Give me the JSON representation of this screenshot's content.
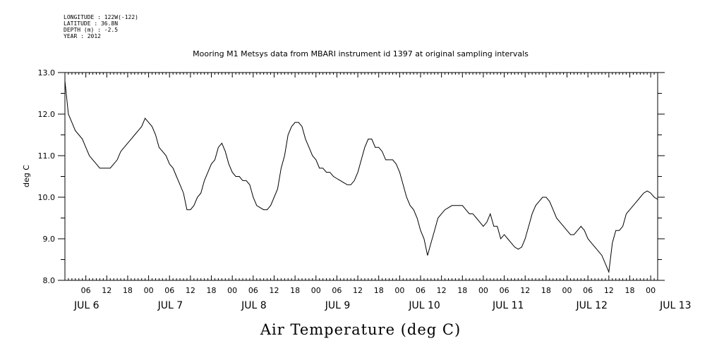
{
  "header": {
    "longitude": "LONGITUDE : 122W(-122)",
    "latitude": "LATITUDE : 36.8N",
    "depth": "DEPTH (m) : -2.5",
    "year": "YEAR : 2012"
  },
  "chart_data": {
    "type": "line",
    "subtitle": "Mooring M1 Metsys data from MBARI instrument id 1397 at original sampling intervals",
    "title": "Air Temperature (deg C)",
    "ylabel": "deg C",
    "xlabel": "",
    "ylim": [
      8.0,
      13.0
    ],
    "y_tick_labels": [
      "8.0",
      "9.0",
      "10.0",
      "11.0",
      "12.0",
      "13.0"
    ],
    "x_start_hour": 0,
    "x_end_hour": 170,
    "x_tick_labels": [
      "06",
      "12",
      "18",
      "00",
      "06",
      "12",
      "18",
      "00",
      "06",
      "12",
      "18",
      "00",
      "06",
      "12",
      "18",
      "00",
      "06",
      "12",
      "18",
      "00",
      "06",
      "12",
      "18",
      "00",
      "06",
      "12",
      "18",
      "00"
    ],
    "day_labels": [
      "JUL  6",
      "JUL  7",
      "JUL  8",
      "JUL  9",
      "JUL 10",
      "JUL 11",
      "JUL 12",
      "JUL 13"
    ],
    "grid": false,
    "series": [
      {
        "line_color": "#000000",
        "x": [
          0,
          1,
          2,
          3,
          4,
          5,
          6,
          7,
          8,
          9,
          10,
          11,
          12,
          13,
          14,
          15,
          16,
          17,
          18,
          19,
          20,
          21,
          22,
          23,
          24,
          25,
          26,
          27,
          28,
          29,
          30,
          31,
          32,
          33,
          34,
          35,
          36,
          37,
          38,
          39,
          40,
          41,
          42,
          43,
          44,
          45,
          46,
          47,
          48,
          49,
          50,
          51,
          52,
          53,
          54,
          55,
          56,
          57,
          58,
          59,
          60,
          61,
          62,
          63,
          64,
          65,
          66,
          67,
          68,
          69,
          70,
          71,
          72,
          73,
          74,
          75,
          76,
          77,
          78,
          79,
          80,
          81,
          82,
          83,
          84,
          85,
          86,
          87,
          88,
          89,
          90,
          91,
          92,
          93,
          94,
          95,
          96,
          97,
          98,
          99,
          100,
          101,
          102,
          103,
          104,
          105,
          106,
          107,
          108,
          109,
          110,
          111,
          112,
          113,
          114,
          115,
          116,
          117,
          118,
          119,
          120,
          121,
          122,
          123,
          124,
          125,
          126,
          127,
          128,
          129,
          130,
          131,
          132,
          133,
          134,
          135,
          136,
          137,
          138,
          139,
          140,
          141,
          142,
          143,
          144,
          145,
          146,
          147,
          148,
          149,
          150,
          151,
          152,
          153,
          154,
          155,
          156,
          157,
          158,
          159,
          160,
          161,
          162,
          163,
          164,
          165,
          166,
          167,
          168,
          169,
          170
        ],
        "values": [
          12.8,
          12.0,
          11.8,
          11.6,
          11.5,
          11.4,
          11.2,
          11.0,
          10.9,
          10.8,
          10.7,
          10.7,
          10.7,
          10.7,
          10.8,
          10.9,
          11.1,
          11.2,
          11.3,
          11.4,
          11.5,
          11.6,
          11.7,
          11.9,
          11.8,
          11.7,
          11.5,
          11.2,
          11.1,
          11.0,
          10.8,
          10.7,
          10.5,
          10.3,
          10.1,
          9.7,
          9.7,
          9.8,
          10.0,
          10.1,
          10.4,
          10.6,
          10.8,
          10.9,
          11.2,
          11.3,
          11.1,
          10.8,
          10.6,
          10.5,
          10.5,
          10.4,
          10.4,
          10.3,
          10.0,
          9.8,
          9.75,
          9.7,
          9.7,
          9.8,
          10.0,
          10.2,
          10.7,
          11.0,
          11.5,
          11.7,
          11.8,
          11.8,
          11.7,
          11.4,
          11.2,
          11.0,
          10.9,
          10.7,
          10.7,
          10.6,
          10.6,
          10.5,
          10.45,
          10.4,
          10.35,
          10.3,
          10.3,
          10.4,
          10.6,
          10.9,
          11.2,
          11.4,
          11.4,
          11.2,
          11.2,
          11.1,
          10.9,
          10.9,
          10.9,
          10.8,
          10.6,
          10.3,
          10.0,
          9.8,
          9.7,
          9.5,
          9.2,
          9.0,
          8.6,
          8.9,
          9.2,
          9.5,
          9.6,
          9.7,
          9.75,
          9.8,
          9.8,
          9.8,
          9.8,
          9.7,
          9.6,
          9.6,
          9.5,
          9.4,
          9.3,
          9.4,
          9.6,
          9.3,
          9.3,
          9.0,
          9.1,
          9.0,
          8.9,
          8.8,
          8.75,
          8.8,
          9.0,
          9.3,
          9.6,
          9.8,
          9.9,
          10.0,
          10.0,
          9.9,
          9.7,
          9.5,
          9.4,
          9.3,
          9.2,
          9.1,
          9.1,
          9.2,
          9.3,
          9.2,
          9.0,
          8.9,
          8.8,
          8.7,
          8.6,
          8.4,
          8.2,
          8.9,
          9.2,
          9.2,
          9.3,
          9.6,
          9.7,
          9.8,
          9.9,
          10.0,
          10.1,
          10.15,
          10.1,
          10.0,
          9.95
        ]
      }
    ]
  }
}
